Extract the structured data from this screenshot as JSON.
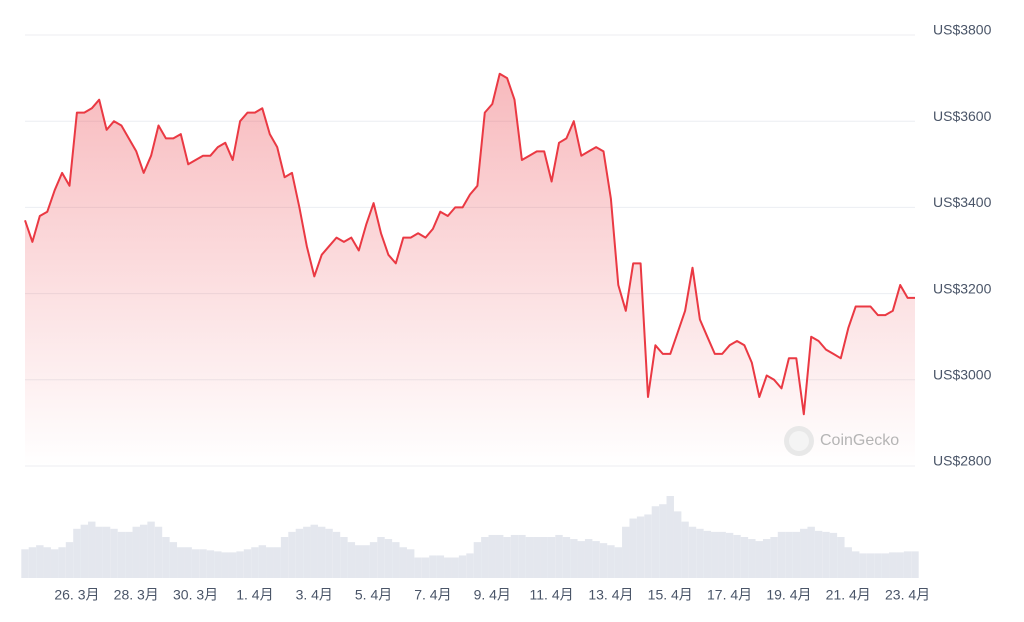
{
  "chart_data": {
    "type": "line",
    "watermark": "CoinGecko",
    "categories": [
      null,
      null,
      null,
      null,
      null,
      null,
      null,
      "26. 3月",
      null,
      null,
      null,
      null,
      null,
      null,
      null,
      "28. 3月",
      null,
      null,
      null,
      null,
      null,
      null,
      null,
      "30. 3月",
      null,
      null,
      null,
      null,
      null,
      null,
      null,
      "1. 4月",
      null,
      null,
      null,
      null,
      null,
      null,
      null,
      "3. 4月",
      null,
      null,
      null,
      null,
      null,
      null,
      null,
      "5. 4月",
      null,
      null,
      null,
      null,
      null,
      null,
      null,
      "7. 4月",
      null,
      null,
      null,
      null,
      null,
      null,
      null,
      "9. 4月",
      null,
      null,
      null,
      null,
      null,
      null,
      null,
      "11. 4月",
      null,
      null,
      null,
      null,
      null,
      null,
      null,
      "13. 4月",
      null,
      null,
      null,
      null,
      null,
      null,
      null,
      "15. 4月",
      null,
      null,
      null,
      null,
      null,
      null,
      null,
      "17. 4月",
      null,
      null,
      null,
      null,
      null,
      null,
      null,
      "19. 4月",
      null,
      null,
      null,
      null,
      null,
      null,
      null,
      "21. 4月",
      null,
      null,
      null,
      null,
      null,
      null,
      null,
      "23. 4月",
      null
    ],
    "values": [
      3370,
      3320,
      3380,
      3390,
      3440,
      3480,
      3450,
      3620,
      3620,
      3630,
      3650,
      3580,
      3600,
      3590,
      3560,
      3530,
      3480,
      3520,
      3590,
      3560,
      3560,
      3570,
      3500,
      3510,
      3520,
      3520,
      3540,
      3550,
      3510,
      3600,
      3620,
      3620,
      3630,
      3570,
      3540,
      3470,
      3480,
      3400,
      3310,
      3240,
      3290,
      3310,
      3330,
      3320,
      3330,
      3300,
      3360,
      3410,
      3340,
      3290,
      3270,
      3330,
      3330,
      3340,
      3330,
      3350,
      3390,
      3380,
      3400,
      3400,
      3430,
      3450,
      3620,
      3640,
      3710,
      3700,
      3650,
      3510,
      3520,
      3530,
      3530,
      3460,
      3550,
      3560,
      3600,
      3520,
      3530,
      3540,
      3530,
      3420,
      3220,
      3160,
      3270,
      3270,
      2960,
      3080,
      3060,
      3060,
      3110,
      3160,
      3260,
      3140,
      3100,
      3060,
      3060,
      3080,
      3090,
      3080,
      3040,
      2960,
      3010,
      3000,
      2980,
      3050,
      3050,
      2920,
      3100,
      3090,
      3070,
      3060,
      3050,
      3120,
      3170,
      3170,
      3170,
      3150,
      3150,
      3160,
      3220,
      3190,
      3190
    ],
    "color": "#ea3943",
    "volume": [
      28,
      30,
      32,
      30,
      28,
      30,
      35,
      48,
      52,
      55,
      50,
      50,
      48,
      45,
      45,
      50,
      52,
      55,
      50,
      40,
      35,
      30,
      30,
      28,
      28,
      27,
      26,
      25,
      25,
      26,
      28,
      30,
      32,
      30,
      30,
      40,
      45,
      48,
      50,
      52,
      50,
      48,
      45,
      40,
      35,
      32,
      32,
      35,
      40,
      38,
      35,
      30,
      28,
      20,
      20,
      22,
      22,
      20,
      20,
      22,
      24,
      35,
      40,
      42,
      42,
      40,
      42,
      42,
      40,
      40,
      40,
      40,
      42,
      40,
      38,
      36,
      38,
      36,
      34,
      32,
      30,
      50,
      58,
      60,
      62,
      70,
      72,
      80,
      65,
      55,
      50,
      48,
      46,
      45,
      45,
      44,
      42,
      40,
      38,
      36,
      38,
      40,
      45,
      45,
      45,
      48,
      50,
      46,
      45,
      44,
      40,
      30,
      26,
      24,
      24,
      24,
      24,
      25,
      25,
      26,
      26
    ],
    "volume_color": "#e4e7ee",
    "ylim": [
      2800,
      3800
    ],
    "yticks": [
      {
        "value": 2800,
        "label": "US$2800"
      },
      {
        "value": 3000,
        "label": "US$3000"
      },
      {
        "value": 3200,
        "label": "US$3200"
      },
      {
        "value": 3400,
        "label": "US$3400"
      },
      {
        "value": 3600,
        "label": "US$3600"
      },
      {
        "value": 3800,
        "label": "US$3800"
      }
    ],
    "grid": true
  }
}
